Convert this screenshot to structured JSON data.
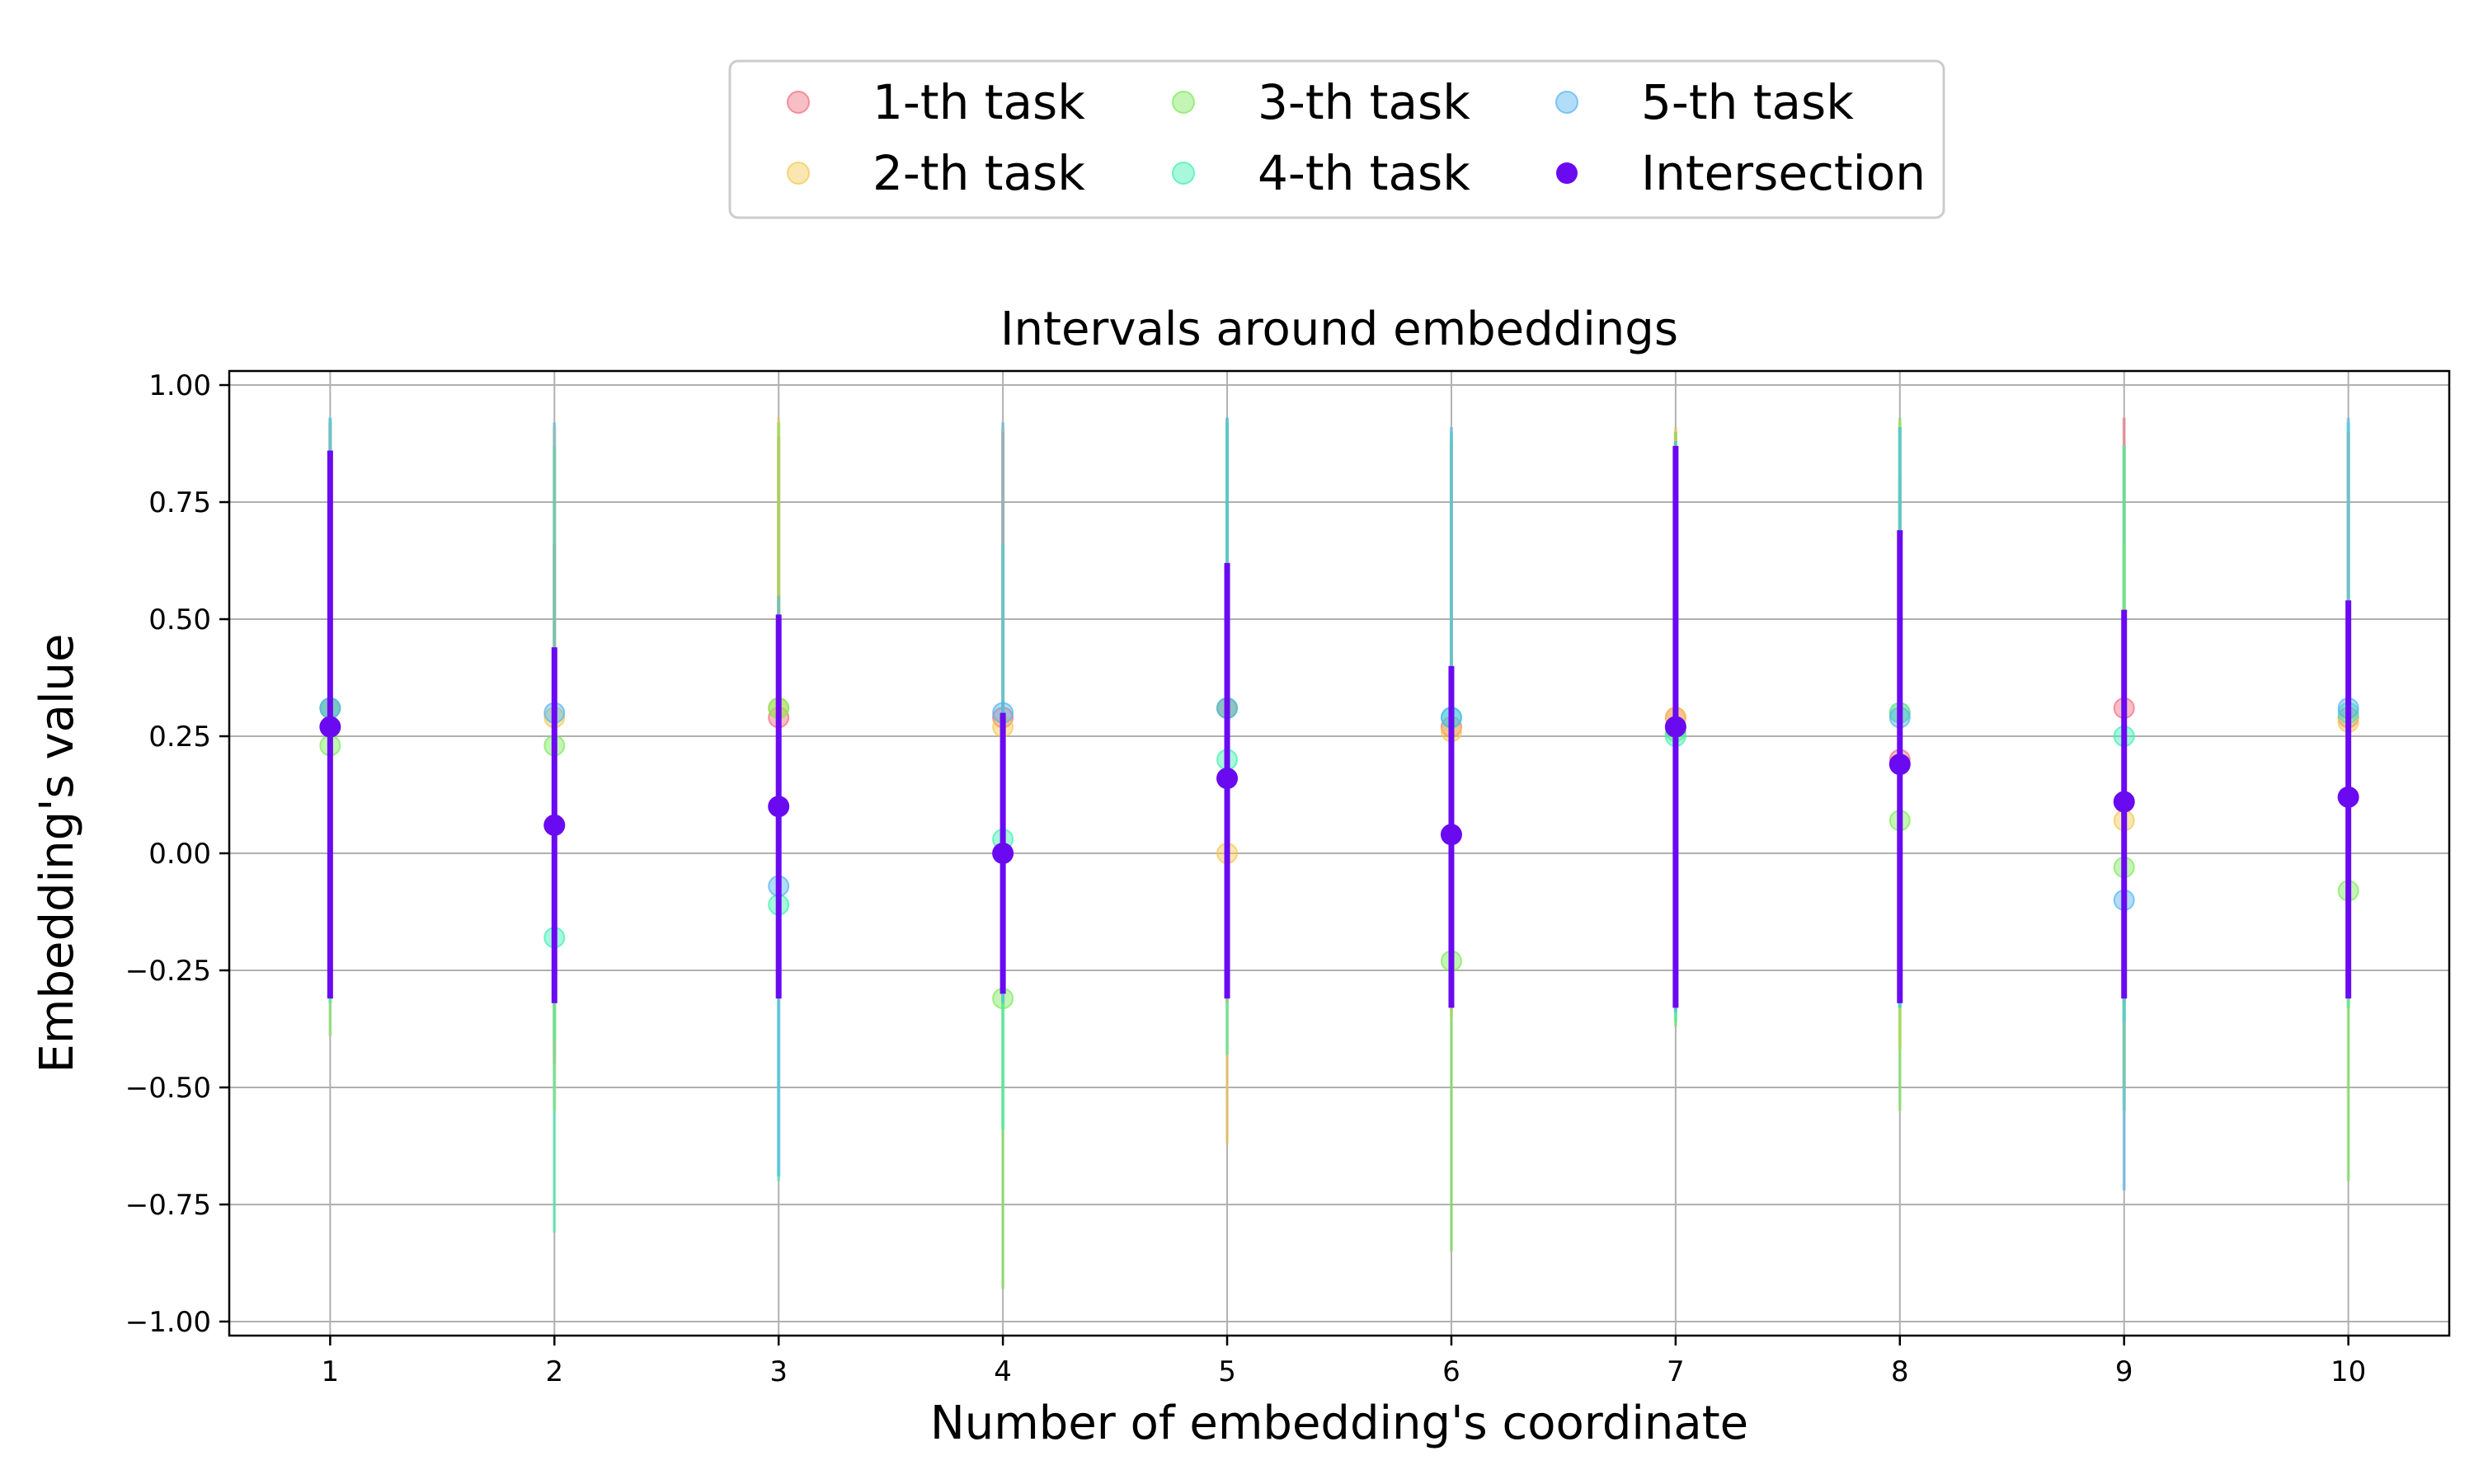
{
  "chart_data": {
    "type": "scatter",
    "title": "Intervals around embeddings",
    "xlabel": "Number of embedding's coordinate",
    "ylabel": "Embedding's value",
    "xlim": [
      0.55,
      10.45
    ],
    "ylim": [
      -1.03,
      1.03
    ],
    "x": [
      1,
      2,
      3,
      4,
      5,
      6,
      7,
      8,
      9,
      10
    ],
    "xtick_labels": [
      "1",
      "2",
      "3",
      "4",
      "5",
      "6",
      "7",
      "8",
      "9",
      "10"
    ],
    "yticks": [
      1.0,
      0.75,
      0.5,
      0.25,
      0.0,
      -0.25,
      -0.5,
      -0.75,
      -1.0
    ],
    "ytick_labels": [
      "1.00",
      "0.75",
      "0.50",
      "0.25",
      "0.00",
      "−0.25",
      "−0.50",
      "−0.75",
      "−1.00"
    ],
    "grid": true,
    "legend_placement": "top-center, above plot",
    "series": [
      {
        "name": "1-th task",
        "color": "#f06e7e",
        "values": [
          0.31,
          0.06,
          0.29,
          0.29,
          0.31,
          0.27,
          0.29,
          0.2,
          0.31,
          0.29
        ],
        "lower": [
          -0.3,
          -0.45,
          -0.3,
          -0.3,
          -0.32,
          -0.33,
          -0.33,
          -0.32,
          -0.32,
          -0.31
        ],
        "upper": [
          0.92,
          0.66,
          0.89,
          0.9,
          0.92,
          0.88,
          0.9,
          0.8,
          0.93,
          0.9
        ]
      },
      {
        "name": "2-th task",
        "color": "#f3c84f",
        "values": [
          0.31,
          0.29,
          0.31,
          0.27,
          0.0,
          0.26,
          0.29,
          0.3,
          0.07,
          0.28
        ],
        "lower": [
          -0.3,
          -0.55,
          -0.3,
          -0.33,
          -0.62,
          -0.35,
          -0.3,
          -0.42,
          -0.5,
          -0.33
        ],
        "upper": [
          0.92,
          0.91,
          0.93,
          0.91,
          0.63,
          0.89,
          0.91,
          0.92,
          0.66,
          0.9
        ]
      },
      {
        "name": "3-th task",
        "color": "#7de85a",
        "values": [
          0.23,
          0.23,
          0.31,
          -0.31,
          0.31,
          -0.23,
          0.26,
          0.07,
          -0.03,
          -0.08
        ],
        "lower": [
          -0.39,
          -0.4,
          -0.31,
          -0.93,
          -0.31,
          -0.85,
          -0.37,
          -0.55,
          -0.55,
          -0.7
        ],
        "upper": [
          0.86,
          0.87,
          0.92,
          0.31,
          0.92,
          0.38,
          0.9,
          0.93,
          0.87,
          0.54
        ]
      },
      {
        "name": "4-th task",
        "color": "#3ef0b0",
        "values": [
          0.31,
          -0.18,
          -0.11,
          0.03,
          0.2,
          0.29,
          0.25,
          0.3,
          0.25,
          0.3
        ],
        "lower": [
          -0.32,
          -0.81,
          -0.7,
          -0.59,
          -0.43,
          -0.33,
          -0.36,
          -0.33,
          -0.36,
          -0.33
        ],
        "upper": [
          0.93,
          0.44,
          0.51,
          0.66,
          0.93,
          0.9,
          0.88,
          0.91,
          0.87,
          0.92
        ]
      },
      {
        "name": "5-th task",
        "color": "#52b4f0",
        "values": [
          0.31,
          0.3,
          -0.07,
          0.3,
          0.31,
          0.29,
          0.27,
          0.29,
          -0.1,
          0.31
        ],
        "lower": [
          -0.31,
          -0.32,
          -0.69,
          -0.32,
          -0.31,
          -0.33,
          -0.34,
          -0.33,
          -0.72,
          -0.31
        ],
        "upper": [
          0.93,
          0.92,
          0.55,
          0.92,
          0.93,
          0.91,
          0.88,
          0.91,
          0.52,
          0.93
        ]
      },
      {
        "name": "Intersection",
        "color": "#6a0af0",
        "values": [
          0.27,
          0.06,
          0.1,
          0.0,
          0.16,
          0.04,
          0.27,
          0.19,
          0.11,
          0.12
        ],
        "lower": [
          -0.31,
          -0.32,
          -0.31,
          -0.3,
          -0.31,
          -0.33,
          -0.33,
          -0.32,
          -0.31,
          -0.31
        ],
        "upper": [
          0.86,
          0.44,
          0.51,
          0.3,
          0.62,
          0.4,
          0.87,
          0.69,
          0.52,
          0.54
        ]
      }
    ]
  }
}
